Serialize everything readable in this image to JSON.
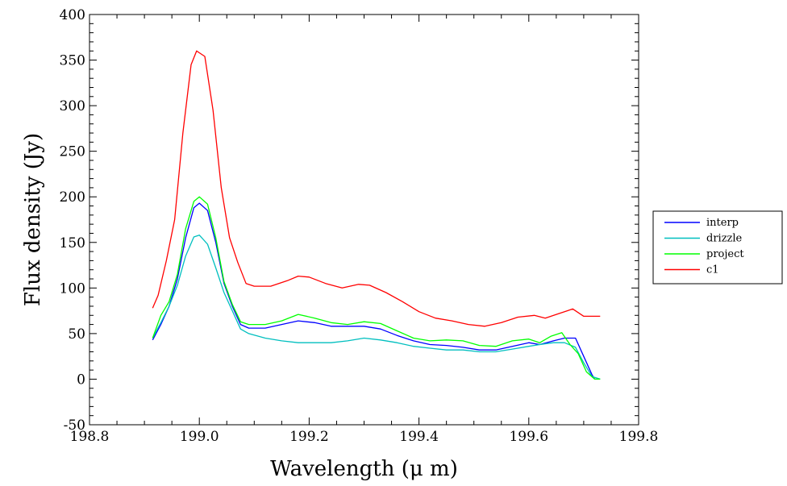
{
  "chart_data": {
    "type": "line",
    "title": "",
    "xlabel": "Wavelength (μ m)",
    "ylabel": "Flux density (Jy)",
    "xlim": [
      198.8,
      199.8
    ],
    "ylim": [
      -50,
      400
    ],
    "xticks": [
      198.8,
      199.0,
      199.2,
      199.4,
      199.6,
      199.8
    ],
    "xtick_labels": [
      "198.8",
      "199.0",
      "199.2",
      "199.4",
      "199.6",
      "199.8"
    ],
    "yticks": [
      -50,
      0,
      50,
      100,
      150,
      200,
      250,
      300,
      350,
      400
    ],
    "ytick_labels": [
      "-50",
      "0",
      "50",
      "100",
      "150",
      "200",
      "250",
      "300",
      "350",
      "400"
    ],
    "grid": false,
    "legend_position": "right",
    "series": [
      {
        "name": "interp",
        "color": "#0000ff",
        "x": [
          198.915,
          198.93,
          198.945,
          198.96,
          198.975,
          198.99,
          199.0,
          199.015,
          199.03,
          199.045,
          199.06,
          199.075,
          199.09,
          199.12,
          199.15,
          199.18,
          199.21,
          199.24,
          199.27,
          199.3,
          199.33,
          199.36,
          199.39,
          199.42,
          199.45,
          199.48,
          199.51,
          199.54,
          199.57,
          199.6,
          199.62,
          199.645,
          199.665,
          199.685,
          199.7,
          199.715,
          199.72
        ],
        "y": [
          43,
          60,
          80,
          110,
          155,
          188,
          193,
          185,
          150,
          105,
          80,
          60,
          56,
          56,
          60,
          64,
          62,
          58,
          58,
          58,
          55,
          48,
          42,
          38,
          37,
          35,
          32,
          32,
          36,
          40,
          38,
          42,
          45,
          45,
          25,
          5,
          0
        ]
      },
      {
        "name": "drizzle",
        "color": "#00bfbf",
        "x": [
          198.915,
          198.93,
          198.945,
          198.96,
          198.975,
          198.99,
          199.0,
          199.015,
          199.03,
          199.045,
          199.06,
          199.075,
          199.09,
          199.12,
          199.15,
          199.18,
          199.21,
          199.24,
          199.27,
          199.3,
          199.33,
          199.36,
          199.39,
          199.42,
          199.45,
          199.48,
          199.51,
          199.54,
          199.57,
          199.6,
          199.62,
          199.645,
          199.665,
          199.685,
          199.7,
          199.715,
          199.73
        ],
        "y": [
          45,
          62,
          80,
          103,
          135,
          156,
          158,
          148,
          122,
          95,
          75,
          55,
          50,
          45,
          42,
          40,
          40,
          40,
          42,
          45,
          43,
          40,
          36,
          34,
          32,
          32,
          30,
          30,
          33,
          36,
          38,
          40,
          40,
          35,
          18,
          3,
          0
        ]
      },
      {
        "name": "project",
        "color": "#00ff00",
        "x": [
          198.915,
          198.93,
          198.945,
          198.96,
          198.975,
          198.99,
          199.0,
          199.015,
          199.03,
          199.045,
          199.06,
          199.075,
          199.09,
          199.12,
          199.15,
          199.18,
          199.21,
          199.24,
          199.27,
          199.3,
          199.33,
          199.36,
          199.39,
          199.42,
          199.45,
          199.48,
          199.51,
          199.54,
          199.57,
          199.6,
          199.62,
          199.64,
          199.66,
          199.675,
          199.69,
          199.705,
          199.72,
          199.73
        ],
        "y": [
          45,
          70,
          85,
          115,
          165,
          195,
          200,
          192,
          155,
          107,
          82,
          63,
          60,
          60,
          64,
          71,
          67,
          62,
          60,
          63,
          61,
          53,
          45,
          42,
          43,
          42,
          37,
          36,
          42,
          44,
          40,
          47,
          51,
          38,
          28,
          8,
          0,
          0
        ]
      },
      {
        "name": "c1",
        "color": "#ff0000",
        "x": [
          198.915,
          198.925,
          198.94,
          198.955,
          198.97,
          198.985,
          198.995,
          199.0,
          199.01,
          199.025,
          199.04,
          199.055,
          199.07,
          199.085,
          199.1,
          199.13,
          199.16,
          199.18,
          199.2,
          199.23,
          199.26,
          199.29,
          199.31,
          199.34,
          199.37,
          199.4,
          199.43,
          199.46,
          199.49,
          199.52,
          199.55,
          199.58,
          199.61,
          199.63,
          199.655,
          199.67,
          199.68,
          199.7,
          199.73
        ],
        "y": [
          78,
          92,
          130,
          175,
          270,
          345,
          360,
          358,
          354,
          295,
          210,
          155,
          128,
          105,
          102,
          102,
          108,
          113,
          112,
          105,
          100,
          104,
          103,
          95,
          85,
          74,
          67,
          64,
          60,
          58,
          62,
          68,
          70,
          67,
          72,
          75,
          77,
          69,
          69
        ]
      }
    ]
  }
}
